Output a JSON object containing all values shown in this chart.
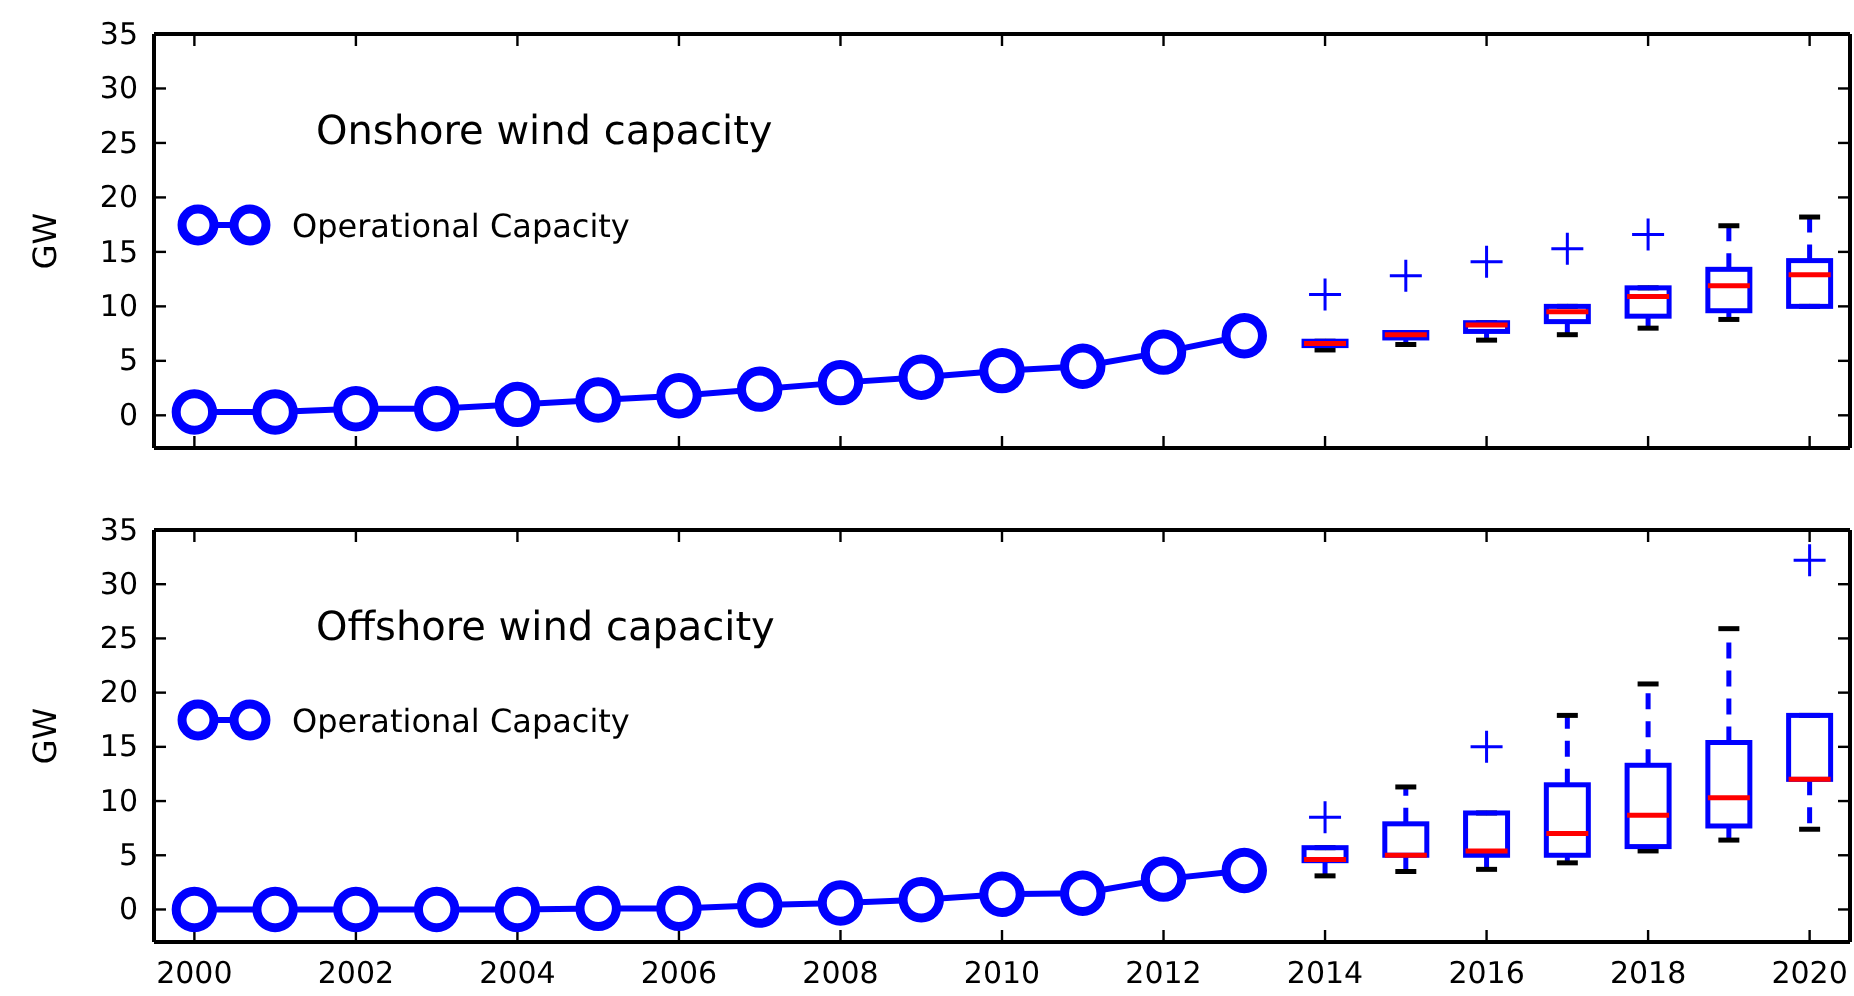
{
  "chart_data": [
    {
      "type": "line",
      "title": "Onshore wind capacity",
      "ylabel": "GW",
      "xlim": [
        1999.5,
        2020.5
      ],
      "ylim": [
        -3,
        35
      ],
      "xticks": [
        2000,
        2002,
        2004,
        2006,
        2008,
        2010,
        2012,
        2014,
        2016,
        2018,
        2020
      ],
      "yticks": [
        0,
        5,
        10,
        15,
        20,
        25,
        30,
        35
      ],
      "tick_labels": "y",
      "legend": "left",
      "marker": "circle",
      "grid": false,
      "series": [
        {
          "name": "Operational Capacity",
          "color": "#0000ff",
          "x": [
            2000,
            2001,
            2002,
            2003,
            2004,
            2005,
            2006,
            2007,
            2008,
            2009,
            2010,
            2011,
            2012,
            2013
          ],
          "values": [
            0.3,
            0.3,
            0.6,
            0.6,
            1.0,
            1.4,
            1.8,
            2.4,
            3.0,
            3.5,
            4.1,
            4.5,
            5.8,
            7.3
          ]
        },
        {
          "type": "box",
          "color": "#0000ff",
          "x": [
            2014,
            2015,
            2016,
            2017,
            2018,
            2019,
            2020
          ],
          "boxes": [
            {
              "low": 6.0,
              "q1": 6.4,
              "median": 6.6,
              "q3": 6.8,
              "high": 6.8,
              "outliers": [
                11.1
              ]
            },
            {
              "low": 6.5,
              "q1": 7.1,
              "median": 7.4,
              "q3": 7.6,
              "high": 7.6,
              "outliers": [
                12.8
              ]
            },
            {
              "low": 6.9,
              "q1": 7.7,
              "median": 8.3,
              "q3": 8.5,
              "high": 8.5,
              "outliers": [
                14.1
              ]
            },
            {
              "low": 7.4,
              "q1": 8.6,
              "median": 9.5,
              "q3": 10.0,
              "high": 10.0,
              "outliers": [
                15.3
              ]
            },
            {
              "low": 8.0,
              "q1": 9.1,
              "median": 10.9,
              "q3": 11.7,
              "high": 11.7,
              "outliers": [
                16.6
              ]
            },
            {
              "low": 8.8,
              "q1": 9.6,
              "median": 11.9,
              "q3": 13.4,
              "high": 17.4
            },
            {
              "low": 10.0,
              "q1": 10.0,
              "median": 12.9,
              "q3": 14.2,
              "high": 18.2
            }
          ]
        }
      ]
    },
    {
      "type": "line",
      "title": "Offshore wind capacity",
      "ylabel": "GW",
      "xlim": [
        1999.5,
        2020.5
      ],
      "ylim": [
        -3,
        35
      ],
      "xticks": [
        2000,
        2002,
        2004,
        2006,
        2008,
        2010,
        2012,
        2014,
        2016,
        2018,
        2020
      ],
      "yticks": [
        0,
        5,
        10,
        15,
        20,
        25,
        30,
        35
      ],
      "legend": "left",
      "marker": "circle",
      "grid": false,
      "series": [
        {
          "name": "Operational Capacity",
          "color": "#0000ff",
          "x": [
            2000,
            2001,
            2002,
            2003,
            2004,
            2005,
            2006,
            2007,
            2008,
            2009,
            2010,
            2011,
            2012,
            2013
          ],
          "values": [
            0,
            0,
            0,
            0,
            0,
            0.1,
            0.1,
            0.4,
            0.6,
            0.9,
            1.4,
            1.5,
            2.8,
            3.6
          ]
        },
        {
          "type": "box",
          "color": "#0000ff",
          "x": [
            2014,
            2015,
            2016,
            2017,
            2018,
            2019,
            2020
          ],
          "boxes": [
            {
              "low": 3.1,
              "q1": 4.5,
              "median": 4.6,
              "q3": 5.7,
              "high": 5.7,
              "outliers": [
                8.5
              ]
            },
            {
              "low": 3.5,
              "q1": 5.0,
              "median": 5.0,
              "q3": 7.9,
              "high": 11.3
            },
            {
              "low": 3.7,
              "q1": 5.0,
              "median": 5.4,
              "q3": 8.9,
              "high": 8.9,
              "outliers": [
                15.0
              ]
            },
            {
              "low": 4.3,
              "q1": 5.0,
              "median": 7.0,
              "q3": 11.5,
              "high": 17.9
            },
            {
              "low": 5.4,
              "q1": 5.8,
              "median": 8.7,
              "q3": 13.3,
              "high": 20.8
            },
            {
              "low": 6.4,
              "q1": 7.7,
              "median": 10.3,
              "q3": 15.4,
              "high": 25.9
            },
            {
              "low": 7.4,
              "q1": 12.0,
              "median": 12.0,
              "q3": 17.9,
              "high": 17.9,
              "outliers": [
                32.2
              ]
            }
          ]
        }
      ]
    }
  ]
}
